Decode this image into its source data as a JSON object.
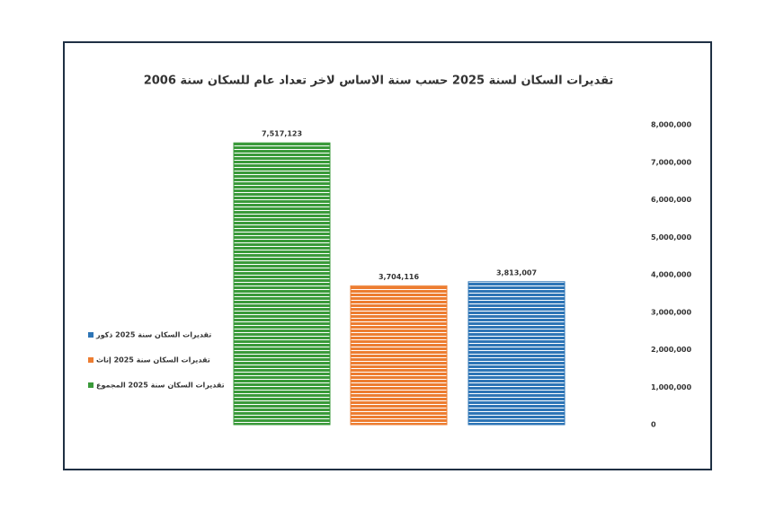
{
  "chart_data": {
    "type": "bar",
    "title": "تقديرات السكان لسنة 2025 حسب سنة الاساس لاخر تعداد عام للسكان سنة 2006",
    "series": [
      {
        "name": "تقديرات السكان سنة 2025 ذكور",
        "color": "#2e75b6",
        "values": [
          3813007
        ],
        "value_labels": [
          "3,813,007"
        ]
      },
      {
        "name": "تقديرات السكان سنة 2025 إناث",
        "color": "#ed7d31",
        "values": [
          3704116
        ],
        "value_labels": [
          "3,704,116"
        ]
      },
      {
        "name": "تقديرات السكان سنة 2025 المجموع",
        "color": "#3a9a3a",
        "values": [
          7517123
        ],
        "value_labels": [
          "7,517,123"
        ]
      }
    ],
    "ylim": [
      0,
      8000000
    ],
    "yticks": [
      0,
      {
        "value": 1000000,
        "label": "1,000,000"
      },
      {
        "value": 2000000,
        "label": "2,000,000"
      },
      {
        "value": 3000000,
        "label": "3,000,000"
      },
      {
        "value": 4000000,
        "label": "4,000,000"
      },
      {
        "value": 5000000,
        "label": "5,000,000"
      },
      {
        "value": 6000000,
        "label": "6,000,000"
      },
      {
        "value": 7000000,
        "label": "7,000,000"
      },
      {
        "value": 8000000,
        "label": "8,000,000"
      }
    ],
    "legend": "left"
  }
}
